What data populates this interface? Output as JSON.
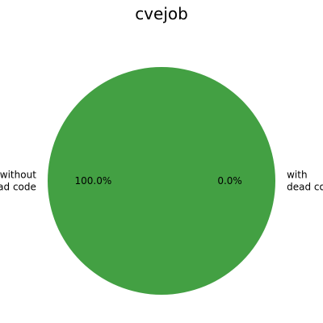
{
  "chart_data": {
    "type": "pie",
    "title": "cvejob",
    "slices": [
      {
        "label_lines": [
          "without",
          "dead code"
        ],
        "value": 100.0,
        "pct_label": "100.0%",
        "color": "#43a043"
      },
      {
        "label_lines": [
          "with",
          "dead code"
        ],
        "value": 0.0,
        "pct_label": "0.0%",
        "color": "#ff7f0e"
      }
    ],
    "start_angle_deg": 0,
    "direction": "counterclockwise",
    "legend": "none"
  }
}
